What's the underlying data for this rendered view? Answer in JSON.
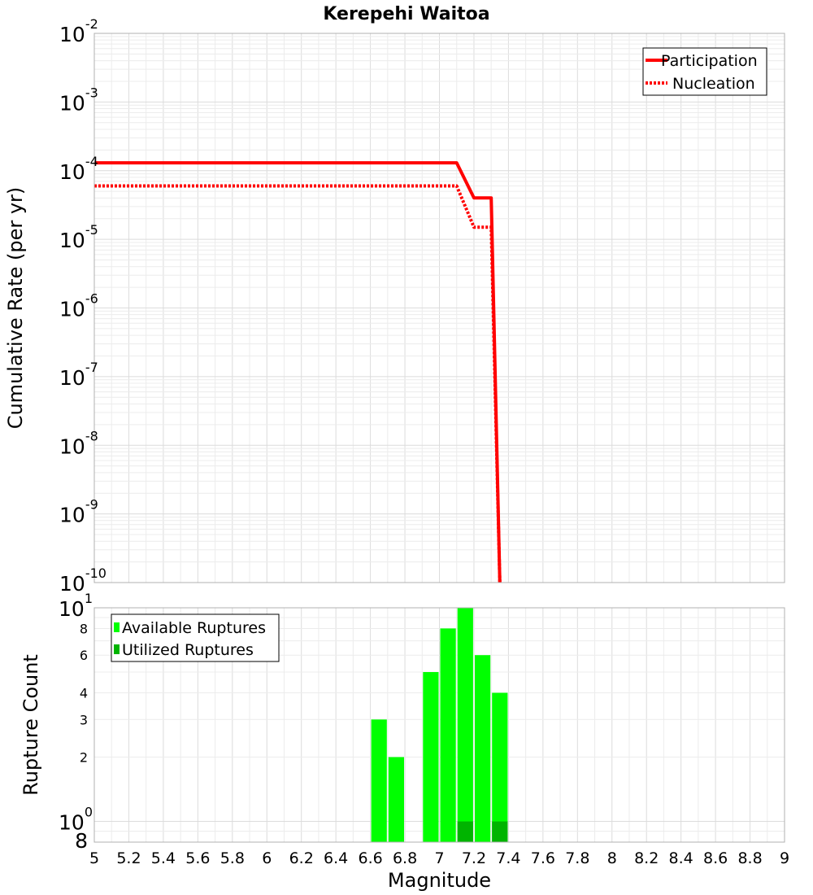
{
  "chart_data": [
    {
      "type": "line",
      "title": "Kerepehi Waitoa",
      "xlabel": "",
      "ylabel": "Cumulative Rate (per yr)",
      "yscale": "log",
      "ylim": [
        1e-10,
        0.01
      ],
      "xlim": [
        5,
        9
      ],
      "y_tick_base": "10",
      "y_tick_exponents": [
        "-10",
        "-9",
        "-8",
        "-7",
        "-6",
        "-5",
        "-4",
        "-3",
        "-2"
      ],
      "grid": true,
      "legend": "top-right",
      "series": [
        {
          "name": "Participation",
          "color": "#ff0000",
          "style": "solid",
          "x": [
            5.0,
            7.1,
            7.2,
            7.3,
            7.35
          ],
          "y": [
            0.00013,
            0.00013,
            4e-05,
            4e-05,
            1e-10
          ]
        },
        {
          "name": "Nucleation",
          "color": "#ff0000",
          "style": "dotted",
          "x": [
            5.0,
            7.1,
            7.2,
            7.3,
            7.35
          ],
          "y": [
            6e-05,
            6e-05,
            1.5e-05,
            1.5e-05,
            1e-10
          ]
        }
      ]
    },
    {
      "type": "bar",
      "title": "",
      "xlabel": "Magnitude",
      "ylabel": "Rupture Count",
      "yscale": "log",
      "ylim": [
        0.8,
        10
      ],
      "xlim": [
        5,
        9
      ],
      "x_ticks": [
        "5",
        "5.2",
        "5.4",
        "5.6",
        "5.8",
        "6",
        "6.2",
        "6.4",
        "6.6",
        "6.8",
        "7",
        "7.2",
        "7.4",
        "7.6",
        "7.8",
        "8",
        "8.2",
        "8.4",
        "8.6",
        "8.8",
        "9"
      ],
      "y_tick_labels": [
        {
          "value": 0.8,
          "label": "8",
          "exp": ""
        },
        {
          "value": 1,
          "label": "10",
          "exp": "0"
        },
        {
          "value": 2,
          "label": "2",
          "exp": ""
        },
        {
          "value": 3,
          "label": "3",
          "exp": ""
        },
        {
          "value": 4,
          "label": "4",
          "exp": ""
        },
        {
          "value": 6,
          "label": "6",
          "exp": ""
        },
        {
          "value": 8,
          "label": "8",
          "exp": ""
        },
        {
          "value": 10,
          "label": "10",
          "exp": "1"
        }
      ],
      "bin_width": 0.1,
      "grid": true,
      "legend": "top-left",
      "series": [
        {
          "name": "Available Ruptures",
          "color": "#00ff00",
          "x": [
            6.65,
            6.75,
            6.95,
            7.05,
            7.15,
            7.25,
            7.35
          ],
          "values": [
            3,
            2,
            5,
            8,
            10,
            6,
            4
          ]
        },
        {
          "name": "Utilized Ruptures",
          "color": "#00b400",
          "x": [
            7.15,
            7.35
          ],
          "values": [
            1,
            1
          ]
        }
      ]
    }
  ]
}
